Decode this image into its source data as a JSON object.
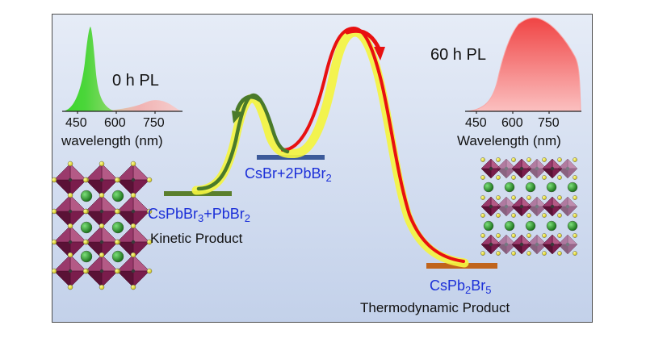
{
  "spectra": {
    "left": {
      "title": "0 h PL",
      "axis_label": "wavelength (nm)",
      "ticks": [
        "450",
        "600",
        "750"
      ]
    },
    "right": {
      "title": "60 h PL",
      "axis_label": "Wavelength (nm)",
      "ticks": [
        "450",
        "600",
        "750"
      ]
    }
  },
  "states": {
    "kinetic": {
      "formula_a": "CsPbBr",
      "sub_a": "3",
      "formula_b": "+PbBr",
      "sub_b": "2",
      "caption": "Kinetic Product"
    },
    "intermediate": {
      "formula": "CsBr+2PbBr",
      "sub": "2"
    },
    "thermodynamic": {
      "formula_a": "CsPb",
      "sub_a": "2",
      "formula_b": "Br",
      "sub_b": "5",
      "caption": "Thermodynamic Product"
    }
  },
  "colors": {
    "background": "#d4deef",
    "path_glow": "#f4f440",
    "forward_arrow": "#e81010",
    "back_arrow": "#4a7a2a",
    "spectrum_green": "#22c11e",
    "spectrum_red": "#f05050",
    "label_blue": "#1b2fd8",
    "kinetic_level": "#5b7f2d",
    "intermediate_level": "#3c5a9a",
    "thermo_level": "#c0641c"
  }
}
